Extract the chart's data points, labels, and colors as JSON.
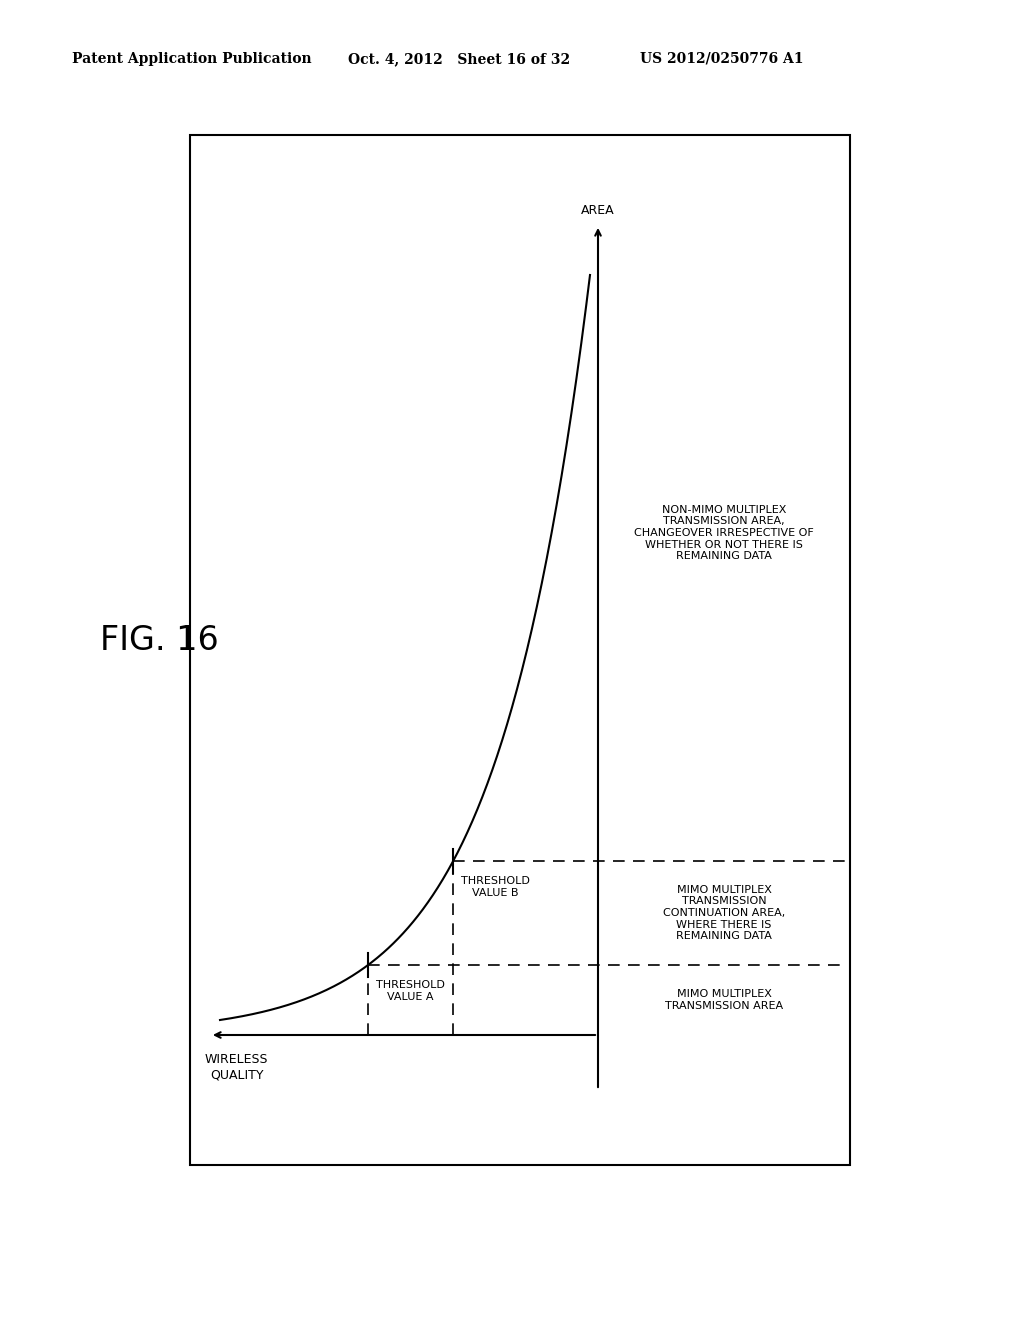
{
  "fig_label": "FIG. 16",
  "header_left": "Patent Application Publication",
  "header_mid": "Oct. 4, 2012   Sheet 16 of 32",
  "header_right": "US 2012/0250776 A1",
  "bg_color": "#ffffff",
  "box_color": "#000000",
  "curve_color": "#000000",
  "dashed_color": "#000000",
  "label_threshold_a": "THRESHOLD\nVALUE A",
  "label_threshold_b": "THRESHOLD\nVALUE B",
  "label_area": "AREA",
  "label_wireless_quality": "WIRELESS\nQUALITY",
  "label_mimo_transmission": "MIMO MULTIPLEX\nTRANSMISSION AREA",
  "label_mimo_continuation": "MIMO MULTIPLEX\nTRANSMISSION\nCONTINUATION AREA,\nWHERE THERE IS\nREMAINING DATA",
  "label_non_mimo": "NON-MIMO MULTIPLEX\nTRANSMISSION AREA,\nCHANGEOVER IRRESPECTIVE OF\nWHETHER OR NOT THERE IS\nREMAINING DATA"
}
